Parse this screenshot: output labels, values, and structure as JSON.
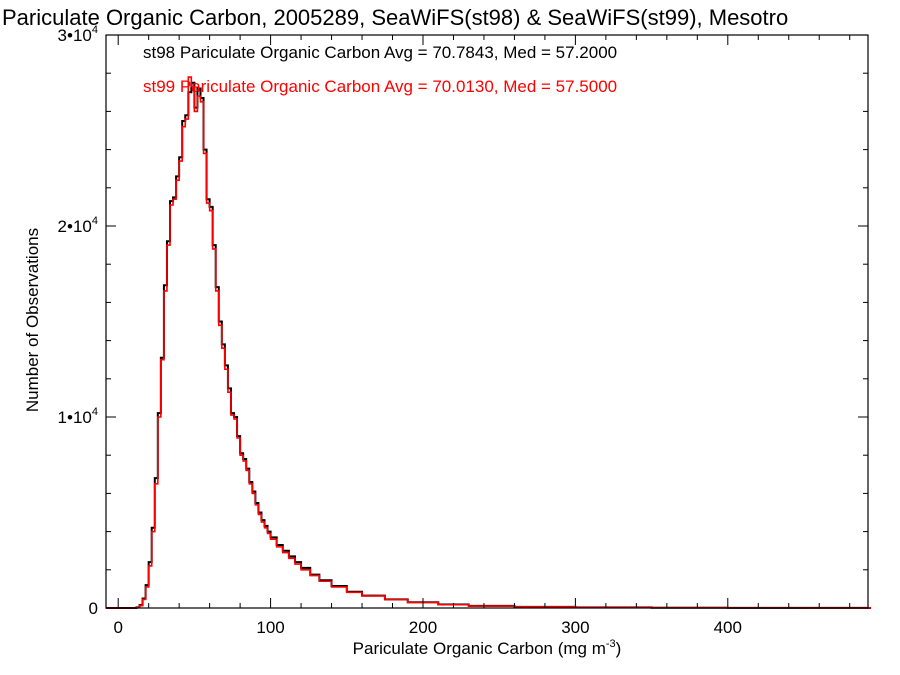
{
  "chart_data": {
    "type": "histogram-step",
    "title": "Pariculate Organic Carbon, 2005289, SeaWiFS(st98) & SeaWiFS(st99), Mesotro",
    "xlabel_main": "Pariculate Organic Carbon (mg m",
    "xlabel_sup": "-3",
    "xlabel_close": ")",
    "ylabel": "Number of Observations",
    "xlim": [
      -8,
      492
    ],
    "ylim": [
      0,
      30000
    ],
    "xticks": [
      0,
      100,
      200,
      300,
      400
    ],
    "yticks": [
      {
        "value": 0,
        "base": "0",
        "exp": ""
      },
      {
        "value": 10000,
        "base": "1•10",
        "exp": "4"
      },
      {
        "value": 20000,
        "base": "2•10",
        "exp": "4"
      },
      {
        "value": 30000,
        "base": "3•10",
        "exp": "4"
      }
    ],
    "legend_position": "top-left",
    "series": [
      {
        "name": "st98 Pariculate Organic Carbon Avg = 70.7843, Med = 57.2000",
        "color": "#000000",
        "bin_width": 2,
        "x": [
          10,
          12,
          14,
          16,
          18,
          20,
          22,
          24,
          26,
          28,
          30,
          32,
          34,
          36,
          38,
          40,
          42,
          44,
          46,
          48,
          50,
          52,
          54,
          56,
          58,
          60,
          62,
          64,
          66,
          68,
          70,
          72,
          74,
          76,
          78,
          80,
          82,
          84,
          86,
          88,
          90,
          92,
          94,
          96,
          98,
          100,
          104,
          108,
          112,
          116,
          120,
          126,
          132,
          140,
          150,
          160,
          175,
          190,
          210,
          230,
          260,
          300,
          350,
          400,
          450,
          492
        ],
        "values": [
          0,
          30,
          150,
          500,
          1200,
          2400,
          4200,
          6800,
          10200,
          13100,
          16900,
          19200,
          21300,
          21500,
          22600,
          23600,
          25500,
          25800,
          27000,
          27500,
          26200,
          27200,
          26700,
          24000,
          21400,
          21000,
          19000,
          16800,
          15000,
          13800,
          12700,
          11500,
          10200,
          10000,
          9000,
          8100,
          7800,
          7300,
          6600,
          6100,
          5500,
          5000,
          4600,
          4300,
          4000,
          3700,
          3300,
          3000,
          2700,
          2400,
          2100,
          1750,
          1450,
          1150,
          850,
          650,
          450,
          300,
          180,
          110,
          60,
          30,
          15,
          8,
          4,
          2
        ]
      },
      {
        "name": "st99 Pariculate Organic Carbon Avg = 70.0130, Med = 57.5000",
        "color": "#ff0000",
        "bin_width": 2,
        "x": [
          10,
          12,
          14,
          16,
          18,
          20,
          22,
          24,
          26,
          28,
          30,
          32,
          34,
          36,
          38,
          40,
          42,
          44,
          46,
          48,
          50,
          52,
          54,
          56,
          58,
          60,
          62,
          64,
          66,
          68,
          70,
          72,
          74,
          76,
          78,
          80,
          82,
          84,
          86,
          88,
          90,
          92,
          94,
          96,
          98,
          100,
          104,
          108,
          112,
          116,
          120,
          126,
          132,
          140,
          150,
          160,
          175,
          190,
          210,
          230,
          260,
          300,
          350,
          400,
          450,
          492
        ],
        "values": [
          0,
          20,
          120,
          450,
          1100,
          2200,
          4000,
          6500,
          10000,
          13000,
          16600,
          19000,
          21100,
          21400,
          22400,
          23400,
          25200,
          25600,
          27800,
          27300,
          26000,
          26800,
          26500,
          23800,
          21200,
          20800,
          18800,
          16600,
          14800,
          13600,
          12500,
          11300,
          10100,
          9900,
          8900,
          8000,
          7700,
          7200,
          6500,
          6000,
          5400,
          4900,
          4500,
          4200,
          3900,
          3600,
          3200,
          2900,
          2600,
          2300,
          2000,
          1700,
          1400,
          1100,
          820,
          630,
          440,
          290,
          170,
          100,
          55,
          28,
          14,
          7,
          3,
          2
        ]
      }
    ]
  }
}
